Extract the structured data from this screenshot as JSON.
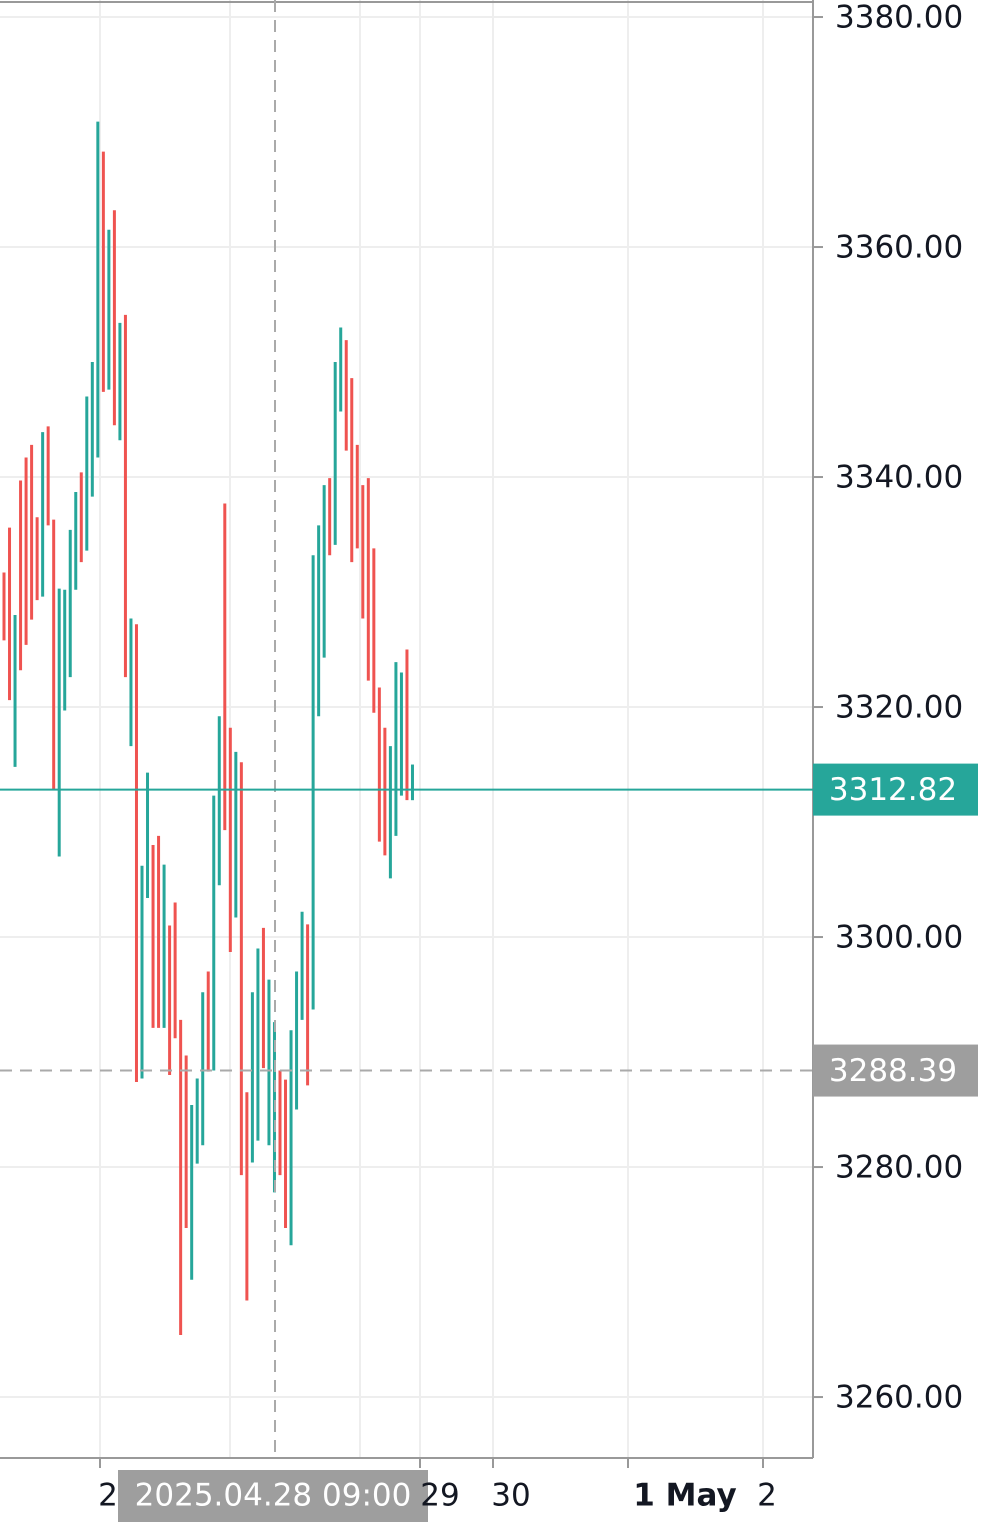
{
  "chart_data": {
    "type": "range-bar",
    "ylim": [
      3254.7,
      3381.48
    ],
    "yticks": [
      {
        "value": 3260,
        "label": "3260.00"
      },
      {
        "value": 3280,
        "label": "3280.00"
      },
      {
        "value": 3300,
        "label": "3300.00"
      },
      {
        "value": 3320,
        "label": "3320.00"
      },
      {
        "value": 3340,
        "label": "3340.00"
      },
      {
        "value": 3360,
        "label": "3360.00"
      },
      {
        "value": 3380,
        "label": "3380.00"
      }
    ],
    "xtick_labels": [
      "2",
      "29",
      "30",
      "1 May",
      "2"
    ],
    "xtick_bold": [
      false,
      false,
      false,
      true,
      false
    ],
    "up_color": "#26a69a",
    "down_color": "#ef5350",
    "grid": true,
    "high": [
      3331.7,
      3335.6,
      3328.0,
      3339.7,
      3341.7,
      3342.8,
      3336.5,
      3343.9,
      3344.4,
      3336.3,
      3330.3,
      3330.2,
      3335.4,
      3338.7,
      3340.4,
      3347.0,
      3350.0,
      3370.9,
      3368.3,
      3361.5,
      3363.2,
      3353.4,
      3354.1,
      3327.7,
      3327.2,
      3306.2,
      3314.3,
      3308.0,
      3308.8,
      3306.3,
      3301.0,
      3303.0,
      3292.8,
      3289.7,
      3285.4,
      3287.7,
      3295.2,
      3297.0,
      3312.3,
      3319.2,
      3337.7,
      3318.2,
      3316.1,
      3315.2,
      3286.5,
      3295.2,
      3299.0,
      3300.8,
      3296.3,
      3292.6,
      3288.4,
      3287.6,
      3291.9,
      3297.0,
      3302.2,
      3301.1,
      3333.2,
      3335.8,
      3339.3,
      3339.9,
      3350.0,
      3353.0,
      3351.9,
      3348.6,
      3342.8,
      3339.3,
      3339.9,
      3333.8,
      3321.7,
      3318.2,
      3316.6,
      3323.9,
      3323.0,
      3325.0,
      3315.0
    ],
    "low": [
      3325.8,
      3320.6,
      3314.8,
      3323.2,
      3325.4,
      3327.6,
      3329.3,
      3329.6,
      3335.8,
      3312.8,
      3307.0,
      3319.7,
      3322.6,
      3330.2,
      3332.6,
      3333.6,
      3338.3,
      3341.7,
      3347.4,
      3347.6,
      3344.5,
      3343.2,
      3322.6,
      3316.6,
      3287.4,
      3287.7,
      3303.4,
      3292.1,
      3292.1,
      3292.1,
      3288.0,
      3291.2,
      3265.4,
      3274.7,
      3270.2,
      3280.3,
      3281.9,
      3288.3,
      3288.4,
      3304.5,
      3309.3,
      3298.7,
      3301.7,
      3279.3,
      3268.4,
      3280.4,
      3282.3,
      3288.6,
      3281.9,
      3277.8,
      3279.3,
      3274.7,
      3273.2,
      3285.0,
      3292.8,
      3287.1,
      3293.7,
      3319.2,
      3324.3,
      3333.2,
      3334.1,
      3345.7,
      3342.3,
      3332.6,
      3333.8,
      3327.7,
      3322.3,
      3319.5,
      3308.3,
      3307.1,
      3305.1,
      3308.8,
      3312.3,
      3311.9,
      3311.9
    ],
    "direction": [
      "down",
      "down",
      "up",
      "down",
      "down",
      "down",
      "down",
      "up",
      "down",
      "down",
      "up",
      "up",
      "up",
      "up",
      "down",
      "up",
      "up",
      "up",
      "down",
      "up",
      "down",
      "up",
      "down",
      "up",
      "down",
      "up",
      "up",
      "down",
      "down",
      "up",
      "down",
      "down",
      "down",
      "down",
      "up",
      "up",
      "up",
      "down",
      "up",
      "up",
      "down",
      "down",
      "up",
      "down",
      "down",
      "up",
      "up",
      "down",
      "up",
      "up",
      "down",
      "down",
      "up",
      "up",
      "up",
      "down",
      "up",
      "up",
      "up",
      "down",
      "up",
      "up",
      "down",
      "down",
      "down",
      "down",
      "down",
      "down",
      "down",
      "down",
      "up",
      "up",
      "up",
      "down",
      "up"
    ],
    "last_price": {
      "value": 3312.82,
      "label": "3312.82"
    },
    "crosshair_price": {
      "value": 3288.39,
      "label": "3288.39"
    },
    "crosshair_time": "2025.04.28 09:00"
  }
}
